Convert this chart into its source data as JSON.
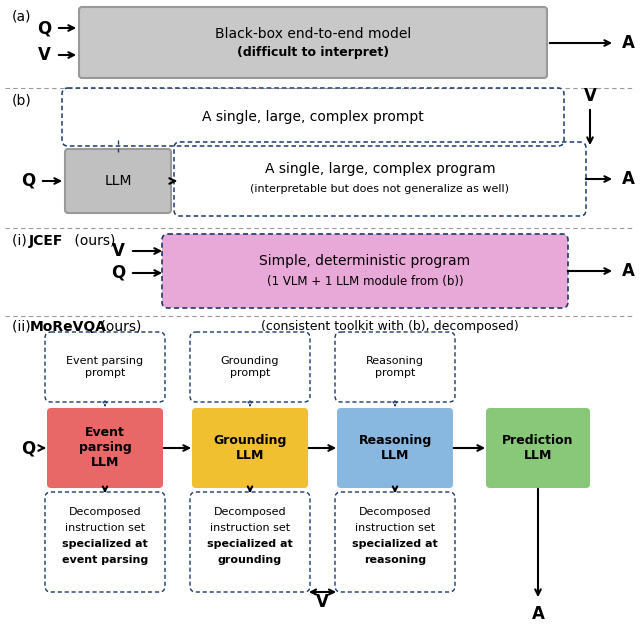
{
  "bg_color": "#ffffff",
  "sep_color": "#999999",
  "dashed_color": "#1a3a6b",
  "section_a": {
    "label": "(a)",
    "box_text1": "Black-box end-to-end model",
    "box_text2": "(difficult to interpret)",
    "box_fc": "#c8c8c8",
    "box_ec": "#999999"
  },
  "section_b": {
    "label": "(b)",
    "prompt_text": "A single, large, complex prompt",
    "llm_text": "LLM",
    "prog_text1": "A single, large, complex program",
    "prog_text2": "(interpretable but does not generalize as well)",
    "llm_fc": "#c0c0c0",
    "llm_ec": "#999999"
  },
  "section_i": {
    "label_prefix": "(i) ",
    "label_bold": "JCEF",
    "label_suffix": " (ours)",
    "prog_text1": "Simple, deterministic program",
    "prog_text2": "(1 VLM + 1 LLM module from (b))",
    "box_fc": "#e8a8d8",
    "box_ec": "#1a3a6b"
  },
  "section_ii": {
    "label_prefix": "(ii) ",
    "label_bold": "MoReVQA",
    "label_suffix": " (ours)",
    "subtitle": "(consistent toolkit with (b), decomposed)",
    "columns": [
      {
        "prompt_text": "Event parsing\nprompt",
        "llm_text": "Event\nparsing\nLLM",
        "decomp_line1": "Decomposed",
        "decomp_line2": "instruction set",
        "decomp_line3": "specialized at",
        "decomp_line4": "event parsing",
        "llm_fc": "#e86868",
        "llm_ec": "#e86868",
        "prompt_fc": "#f8d0d0"
      },
      {
        "prompt_text": "Grounding\nprompt",
        "llm_text": "Grounding\nLLM",
        "decomp_line1": "Decomposed",
        "decomp_line2": "instruction set",
        "decomp_line3": "specialized at",
        "decomp_line4": "grounding",
        "llm_fc": "#f0c030",
        "llm_ec": "#f0c030",
        "prompt_fc": "#faeaa0"
      },
      {
        "prompt_text": "Reasoning\nprompt",
        "llm_text": "Reasoning\nLLM",
        "decomp_line1": "Decomposed",
        "decomp_line2": "instruction set",
        "decomp_line3": "specialized at",
        "decomp_line4": "reasoning",
        "llm_fc": "#88b8e0",
        "llm_ec": "#88b8e0",
        "prompt_fc": "#c8dff5"
      }
    ],
    "pred_text": "Prediction\nLLM",
    "pred_fc": "#88c878",
    "pred_ec": "#88c878"
  }
}
